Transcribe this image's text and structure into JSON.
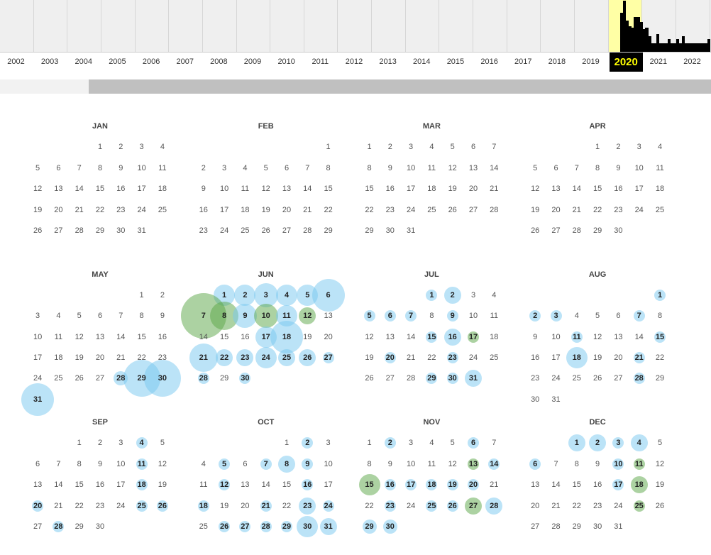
{
  "timeline": {
    "years": [
      "2002",
      "2003",
      "2004",
      "2005",
      "2006",
      "2007",
      "2008",
      "2009",
      "2010",
      "2011",
      "2012",
      "2013",
      "2014",
      "2015",
      "2016",
      "2017",
      "2018",
      "2019",
      "2020",
      "2021",
      "2022"
    ],
    "selected_year": "2020",
    "highlight_color": "#ffffa5",
    "monthly_activity_percent": {
      "2020": [
        0,
        0,
        0,
        0,
        76,
        100,
        61,
        50,
        47,
        68,
        68,
        58
      ],
      "2021": [
        44,
        47,
        31,
        17,
        17,
        35,
        17,
        17,
        17,
        25,
        17,
        17
      ],
      "2022": [
        25,
        17,
        31,
        17,
        17,
        17,
        17,
        17,
        17,
        17,
        17,
        25
      ]
    }
  },
  "calendar": {
    "year": 2020,
    "legend_colors": {
      "ok": "#78c8f0",
      "redirect": "#5aa546"
    },
    "months": [
      {
        "name": "JAN",
        "days": 31,
        "captures": []
      },
      {
        "name": "FEB",
        "days": 29,
        "captures": []
      },
      {
        "name": "MAR",
        "days": 31,
        "captures": []
      },
      {
        "name": "APR",
        "days": 30,
        "captures": []
      },
      {
        "name": "MAY",
        "days": 31,
        "captures": [
          {
            "day": 28,
            "level": 2,
            "status": "ok"
          },
          {
            "day": 29,
            "level": 8,
            "status": "ok"
          },
          {
            "day": 30,
            "level": 8,
            "status": "ok"
          },
          {
            "day": 31,
            "level": 7,
            "status": "ok"
          }
        ]
      },
      {
        "name": "JUN",
        "days": 30,
        "captures": [
          {
            "day": 1,
            "level": 4,
            "status": "ok"
          },
          {
            "day": 2,
            "level": 4,
            "status": "ok"
          },
          {
            "day": 3,
            "level": 5,
            "status": "ok"
          },
          {
            "day": 4,
            "level": 4,
            "status": "ok"
          },
          {
            "day": 5,
            "level": 4,
            "status": "ok"
          },
          {
            "day": 6,
            "level": 7,
            "status": "ok"
          },
          {
            "day": 7,
            "level": 9,
            "status": "redirect"
          },
          {
            "day": 8,
            "level": 6,
            "status": "redirect"
          },
          {
            "day": 9,
            "level": 5,
            "status": "ok"
          },
          {
            "day": 10,
            "level": 5,
            "status": "redirect"
          },
          {
            "day": 11,
            "level": 4,
            "status": "ok"
          },
          {
            "day": 12,
            "level": 3,
            "status": "redirect"
          },
          {
            "day": 17,
            "level": 4,
            "status": "ok"
          },
          {
            "day": 18,
            "level": 7,
            "status": "ok"
          },
          {
            "day": 21,
            "level": 6,
            "status": "ok"
          },
          {
            "day": 22,
            "level": 3,
            "status": "ok"
          },
          {
            "day": 23,
            "level": 3,
            "status": "ok"
          },
          {
            "day": 24,
            "level": 4,
            "status": "ok"
          },
          {
            "day": 25,
            "level": 3,
            "status": "ok"
          },
          {
            "day": 26,
            "level": 3,
            "status": "ok"
          },
          {
            "day": 27,
            "level": 1,
            "status": "ok"
          },
          {
            "day": 28,
            "level": 1,
            "status": "ok"
          },
          {
            "day": 30,
            "level": 1,
            "status": "ok"
          }
        ]
      },
      {
        "name": "JUL",
        "days": 31,
        "captures": [
          {
            "day": 1,
            "level": 1,
            "status": "ok"
          },
          {
            "day": 2,
            "level": 3,
            "status": "ok"
          },
          {
            "day": 5,
            "level": 1,
            "status": "ok"
          },
          {
            "day": 6,
            "level": 1,
            "status": "ok"
          },
          {
            "day": 7,
            "level": 1,
            "status": "ok"
          },
          {
            "day": 9,
            "level": 1,
            "status": "ok"
          },
          {
            "day": 15,
            "level": 1,
            "status": "ok"
          },
          {
            "day": 16,
            "level": 3,
            "status": "ok"
          },
          {
            "day": 17,
            "level": 1,
            "status": "redirect"
          },
          {
            "day": 20,
            "level": 1,
            "status": "ok"
          },
          {
            "day": 23,
            "level": 1,
            "status": "ok"
          },
          {
            "day": 29,
            "level": 1,
            "status": "ok"
          },
          {
            "day": 30,
            "level": 1,
            "status": "ok"
          },
          {
            "day": 31,
            "level": 3,
            "status": "ok"
          }
        ]
      },
      {
        "name": "AUG",
        "days": 31,
        "captures": [
          {
            "day": 1,
            "level": 1,
            "status": "ok"
          },
          {
            "day": 2,
            "level": 1,
            "status": "ok"
          },
          {
            "day": 3,
            "level": 1,
            "status": "ok"
          },
          {
            "day": 7,
            "level": 1,
            "status": "ok"
          },
          {
            "day": 11,
            "level": 1,
            "status": "ok"
          },
          {
            "day": 15,
            "level": 1,
            "status": "ok"
          },
          {
            "day": 18,
            "level": 4,
            "status": "ok"
          },
          {
            "day": 21,
            "level": 1,
            "status": "ok"
          },
          {
            "day": 28,
            "level": 1,
            "status": "ok"
          }
        ]
      },
      {
        "name": "SEP",
        "days": 30,
        "captures": [
          {
            "day": 4,
            "level": 1,
            "status": "ok"
          },
          {
            "day": 11,
            "level": 1,
            "status": "ok"
          },
          {
            "day": 18,
            "level": 1,
            "status": "ok"
          },
          {
            "day": 20,
            "level": 1,
            "status": "ok"
          },
          {
            "day": 25,
            "level": 1,
            "status": "ok"
          },
          {
            "day": 26,
            "level": 1,
            "status": "ok"
          },
          {
            "day": 28,
            "level": 1,
            "status": "ok"
          }
        ]
      },
      {
        "name": "OCT",
        "days": 31,
        "captures": [
          {
            "day": 2,
            "level": 1,
            "status": "ok"
          },
          {
            "day": 5,
            "level": 1,
            "status": "ok"
          },
          {
            "day": 7,
            "level": 1,
            "status": "ok"
          },
          {
            "day": 8,
            "level": 3,
            "status": "ok"
          },
          {
            "day": 9,
            "level": 1,
            "status": "ok"
          },
          {
            "day": 12,
            "level": 1,
            "status": "ok"
          },
          {
            "day": 16,
            "level": 1,
            "status": "ok"
          },
          {
            "day": 18,
            "level": 1,
            "status": "ok"
          },
          {
            "day": 21,
            "level": 1,
            "status": "ok"
          },
          {
            "day": 23,
            "level": 3,
            "status": "ok"
          },
          {
            "day": 24,
            "level": 1,
            "status": "ok"
          },
          {
            "day": 26,
            "level": 1,
            "status": "ok"
          },
          {
            "day": 27,
            "level": 1,
            "status": "ok"
          },
          {
            "day": 28,
            "level": 1,
            "status": "ok"
          },
          {
            "day": 29,
            "level": 1,
            "status": "ok"
          },
          {
            "day": 30,
            "level": 4,
            "status": "ok"
          },
          {
            "day": 31,
            "level": 3,
            "status": "ok"
          }
        ]
      },
      {
        "name": "NOV",
        "days": 30,
        "captures": [
          {
            "day": 2,
            "level": 1,
            "status": "ok"
          },
          {
            "day": 6,
            "level": 1,
            "status": "ok"
          },
          {
            "day": 13,
            "level": 1,
            "status": "redirect"
          },
          {
            "day": 14,
            "level": 1,
            "status": "ok"
          },
          {
            "day": 15,
            "level": 4,
            "status": "redirect"
          },
          {
            "day": 16,
            "level": 1,
            "status": "ok"
          },
          {
            "day": 17,
            "level": 1,
            "status": "ok"
          },
          {
            "day": 18,
            "level": 1,
            "status": "ok"
          },
          {
            "day": 19,
            "level": 1,
            "status": "ok"
          },
          {
            "day": 20,
            "level": 1,
            "status": "ok"
          },
          {
            "day": 23,
            "level": 1,
            "status": "ok"
          },
          {
            "day": 25,
            "level": 1,
            "status": "ok"
          },
          {
            "day": 26,
            "level": 1,
            "status": "ok"
          },
          {
            "day": 27,
            "level": 3,
            "status": "redirect"
          },
          {
            "day": 28,
            "level": 3,
            "status": "ok"
          },
          {
            "day": 29,
            "level": 2,
            "status": "ok"
          },
          {
            "day": 30,
            "level": 2,
            "status": "ok"
          }
        ]
      },
      {
        "name": "DEC",
        "days": 31,
        "captures": [
          {
            "day": 1,
            "level": 3,
            "status": "ok"
          },
          {
            "day": 2,
            "level": 3,
            "status": "ok"
          },
          {
            "day": 3,
            "level": 1,
            "status": "ok"
          },
          {
            "day": 4,
            "level": 3,
            "status": "ok"
          },
          {
            "day": 6,
            "level": 1,
            "status": "ok"
          },
          {
            "day": 10,
            "level": 1,
            "status": "ok"
          },
          {
            "day": 11,
            "level": 1,
            "status": "redirect"
          },
          {
            "day": 17,
            "level": 1,
            "status": "ok"
          },
          {
            "day": 18,
            "level": 3,
            "status": "redirect"
          },
          {
            "day": 25,
            "level": 1,
            "status": "redirect"
          }
        ]
      }
    ]
  }
}
